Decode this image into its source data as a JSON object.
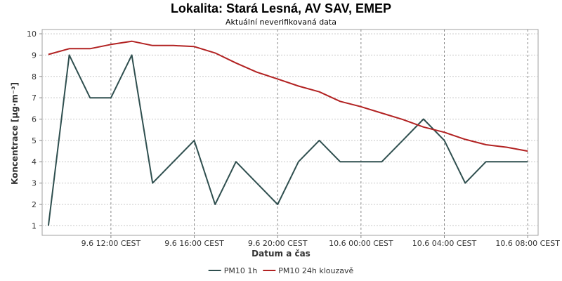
{
  "chart_data": {
    "type": "line",
    "title": "Lokalita: Stará Lesná, AV SAV, EMEP",
    "subtitle": "Aktuální neverifikovaná data",
    "xlabel": "Datum a čas",
    "ylabel": "Koncentrace [µg·m⁻³]",
    "ylim": [
      0.55,
      10.2
    ],
    "y_ticks": [
      1,
      2,
      3,
      4,
      5,
      6,
      7,
      8,
      9,
      10
    ],
    "x_ticks": [
      {
        "label": "9.6 12:00 CEST",
        "hour": 12
      },
      {
        "label": "9.6 16:00 CEST",
        "hour": 16
      },
      {
        "label": "9.6 20:00 CEST",
        "hour": 20
      },
      {
        "label": "10.6 00:00 CEST",
        "hour": 24
      },
      {
        "label": "10.6 04:00 CEST",
        "hour": 28
      },
      {
        "label": "10.6 08:00 CEST",
        "hour": 32
      }
    ],
    "xlim": [
      8.7,
      32.5
    ],
    "x": [
      9,
      10,
      11,
      12,
      13,
      14,
      15,
      16,
      17,
      18,
      19,
      20,
      21,
      22,
      23,
      24,
      25,
      26,
      27,
      28,
      29,
      30,
      31,
      32
    ],
    "series": [
      {
        "name": "PM10 1h",
        "color": "#2f4f4f",
        "values": [
          1,
          9,
          7,
          7,
          9,
          3,
          4,
          5,
          2,
          4,
          3,
          2,
          4,
          5,
          4,
          4,
          4,
          5,
          6,
          5,
          3,
          4,
          4,
          4
        ]
      },
      {
        "name": "PM10 24h klouzavě",
        "color": "#b22222",
        "values": [
          9.03,
          9.3,
          9.3,
          9.5,
          9.65,
          9.45,
          9.45,
          9.4,
          9.1,
          8.63,
          8.2,
          7.88,
          7.55,
          7.28,
          6.83,
          6.58,
          6.28,
          5.98,
          5.63,
          5.38,
          5.05,
          4.8,
          4.68,
          4.5
        ]
      }
    ],
    "grid": true,
    "legend_position": "bottom-center"
  }
}
